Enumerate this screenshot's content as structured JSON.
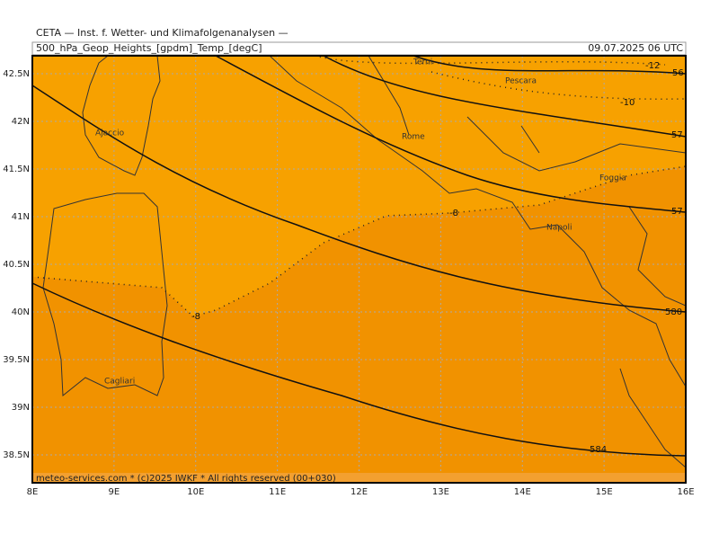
{
  "header": {
    "title": "CETA — Inst. f. Wetter- und Klimafolgenanalysen —",
    "parameter": "500_hPa_Geop_Heights_[gpdm]_Temp_[degC]",
    "valid_time": "09.07.2025 06 UTC"
  },
  "footer": "meteo-services.com * (c)2025 IWKF * All rights reserved (00+030)",
  "x_axis": [
    "8E",
    "9E",
    "10E",
    "11E",
    "12E",
    "13E",
    "14E",
    "15E",
    "16E"
  ],
  "y_axis": [
    "42.5N",
    "42N",
    "41.5N",
    "41N",
    "40.5N",
    "40N",
    "39.5N",
    "39N",
    "38.5N"
  ],
  "cities": [
    "Terni",
    "Pescara",
    "Rome",
    "Ajaccio",
    "Foggia",
    "Napoli",
    "Cagliari"
  ],
  "contour_labels": [
    "-12",
    "56",
    "-10",
    "57",
    "57",
    "-8",
    "-8",
    "580",
    "584"
  ]
}
